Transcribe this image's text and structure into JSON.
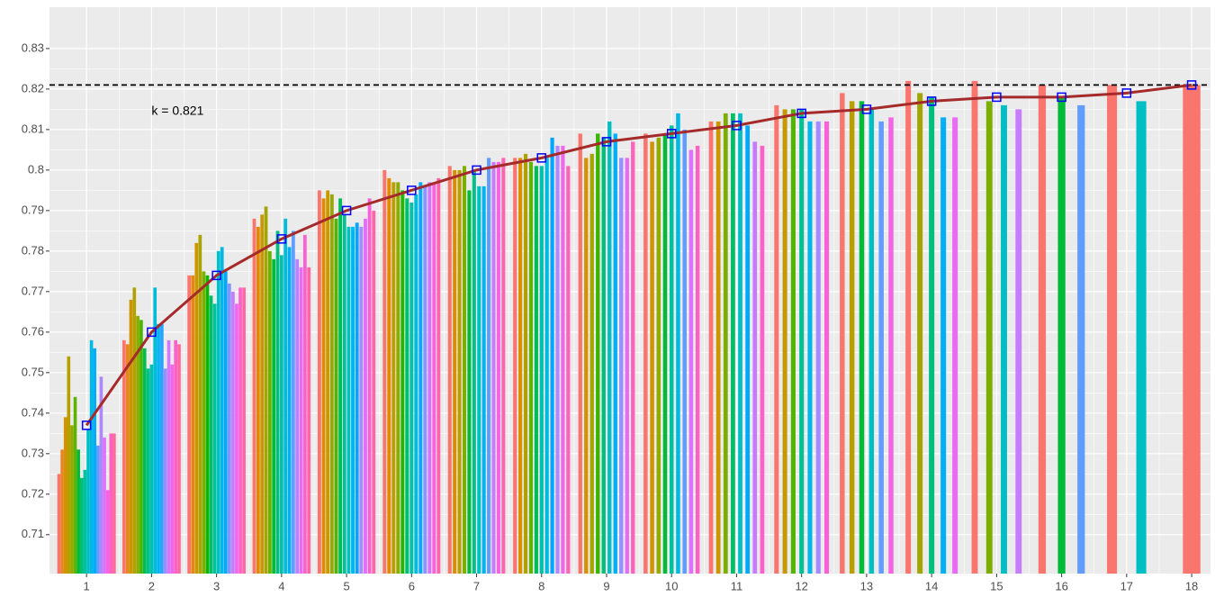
{
  "chart_data": {
    "type": "bar",
    "x": [
      1,
      2,
      3,
      4,
      5,
      6,
      7,
      8,
      9,
      10,
      11,
      12,
      13,
      14,
      15,
      16,
      17,
      18
    ],
    "xlim": [
      0.43,
      18.29
    ],
    "xticks": [
      1,
      2,
      3,
      4,
      5,
      6,
      7,
      8,
      9,
      10,
      11,
      12,
      13,
      14,
      15,
      16,
      17,
      18
    ],
    "ylim": [
      0.7004,
      0.8402
    ],
    "yticks": [
      0.71,
      0.72,
      0.73,
      0.74,
      0.75,
      0.76,
      0.77,
      0.78,
      0.79,
      0.8,
      0.81,
      0.82,
      0.83
    ],
    "grid": true,
    "bar_palette": {
      "type": "hcl-hue",
      "h": [
        15,
        375
      ],
      "c": 100,
      "l": 65
    },
    "groups": [
      {
        "values": [
          0.725,
          0.731,
          0.739,
          0.754,
          0.737,
          0.744,
          0.731,
          0.724,
          0.726,
          0.736,
          0.758,
          0.756,
          0.732,
          0.749,
          0.734,
          0.721,
          0.735,
          0.735
        ]
      },
      {
        "values": [
          0.758,
          0.757,
          0.768,
          0.771,
          0.764,
          0.763,
          0.756,
          0.751,
          0.752,
          0.771,
          0.762,
          0.762,
          0.751,
          0.758,
          0.752,
          0.758,
          0.757
        ]
      },
      {
        "values": [
          0.774,
          0.774,
          0.782,
          0.784,
          0.775,
          0.774,
          0.769,
          0.767,
          0.78,
          0.781,
          0.775,
          0.772,
          0.77,
          0.767,
          0.771,
          0.771
        ]
      },
      {
        "values": [
          0.788,
          0.786,
          0.789,
          0.791,
          0.78,
          0.778,
          0.785,
          0.779,
          0.788,
          0.781,
          0.785,
          0.778,
          0.776,
          0.784,
          0.776
        ]
      },
      {
        "values": [
          0.795,
          0.793,
          0.795,
          0.794,
          0.788,
          0.793,
          0.789,
          0.786,
          0.786,
          0.787,
          0.786,
          0.788,
          0.793,
          0.79
        ]
      },
      {
        "values": [
          0.8,
          0.798,
          0.797,
          0.797,
          0.795,
          0.793,
          0.792,
          0.794,
          0.797,
          0.796,
          0.797,
          0.797,
          0.798
        ]
      },
      {
        "values": [
          0.801,
          0.8,
          0.8,
          0.801,
          0.795,
          0.8,
          0.796,
          0.796,
          0.803,
          0.802,
          0.802,
          0.803
        ]
      },
      {
        "values": [
          0.803,
          0.803,
          0.804,
          0.802,
          0.801,
          0.801,
          0.803,
          0.808,
          0.806,
          0.806,
          0.801
        ]
      },
      {
        "values": [
          0.809,
          0.803,
          0.804,
          0.809,
          0.808,
          0.812,
          0.809,
          0.803,
          0.803,
          0.807
        ]
      },
      {
        "values": [
          0.809,
          0.807,
          0.808,
          0.809,
          0.811,
          0.814,
          0.81,
          0.805,
          0.806
        ]
      },
      {
        "values": [
          0.812,
          0.812,
          0.814,
          0.814,
          0.814,
          0.811,
          0.807,
          0.806
        ]
      },
      {
        "values": [
          0.816,
          0.815,
          0.815,
          0.815,
          0.812,
          0.812,
          0.812
        ]
      },
      {
        "values": [
          0.819,
          0.817,
          0.817,
          0.815,
          0.812,
          0.813
        ]
      },
      {
        "values": [
          0.822,
          0.819,
          0.818,
          0.813,
          0.813
        ]
      },
      {
        "values": [
          0.822,
          0.817,
          0.816,
          0.815
        ]
      },
      {
        "values": [
          0.821,
          0.818,
          0.816
        ]
      },
      {
        "values": [
          0.821,
          0.817
        ]
      },
      {
        "values": [
          0.821
        ]
      }
    ],
    "line": {
      "color": "#a52a2a",
      "marker_color": "#0000ff",
      "values": [
        0.737,
        0.76,
        0.774,
        0.783,
        0.79,
        0.795,
        0.8,
        0.803,
        0.807,
        0.809,
        0.811,
        0.814,
        0.815,
        0.817,
        0.818,
        0.818,
        0.819,
        0.821
      ]
    },
    "hline": {
      "value": 0.821,
      "label": "k = 0.821",
      "color": "#000000"
    }
  }
}
